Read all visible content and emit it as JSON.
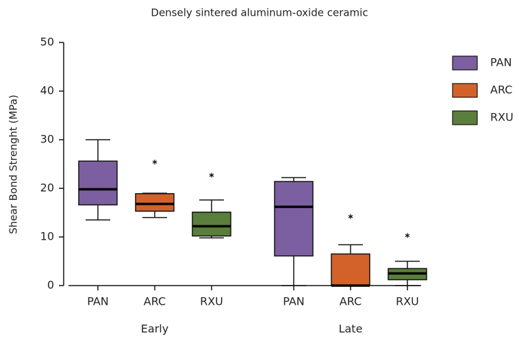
{
  "chart_data": {
    "type": "box",
    "title": "Densely sintered aluminum-oxide ceramic",
    "y_label": "Shear Bond Strenght (MPa)",
    "groups": [
      "Early",
      "Late"
    ],
    "ylim": [
      0,
      50
    ],
    "yticks": [
      0,
      10,
      20,
      30,
      40,
      50
    ],
    "series": [
      {
        "name": "PAN",
        "color": "#7b5fa0",
        "boxes": [
          {
            "min": 13.5,
            "q1": 16.6,
            "median": 19.8,
            "q3": 25.6,
            "max": 30,
            "outliers": []
          },
          {
            "min": 0,
            "q1": 6.1,
            "median": 16.2,
            "q3": 21.4,
            "max": 22.2,
            "outliers": []
          }
        ]
      },
      {
        "name": "ARC",
        "color": "#d2622a",
        "boxes": [
          {
            "min": 14,
            "q1": 15.3,
            "median": 16.8,
            "q3": 18.9,
            "max": 19,
            "outliers": [
              25.4
            ]
          },
          {
            "min": 0,
            "q1": 0,
            "median": 0,
            "q3": 6.5,
            "max": 8.4,
            "outliers": [
              14.2
            ]
          }
        ]
      },
      {
        "name": "RXU",
        "color": "#5a7f3c",
        "boxes": [
          {
            "min": 9.8,
            "q1": 10.2,
            "median": 12.2,
            "q3": 15.1,
            "max": 17.6,
            "outliers": [
              22.7
            ]
          },
          {
            "min": 0,
            "q1": 1.2,
            "median": 2.5,
            "q3": 3.5,
            "max": 5,
            "outliers": [
              10.3
            ]
          }
        ]
      }
    ],
    "legend": "right"
  }
}
